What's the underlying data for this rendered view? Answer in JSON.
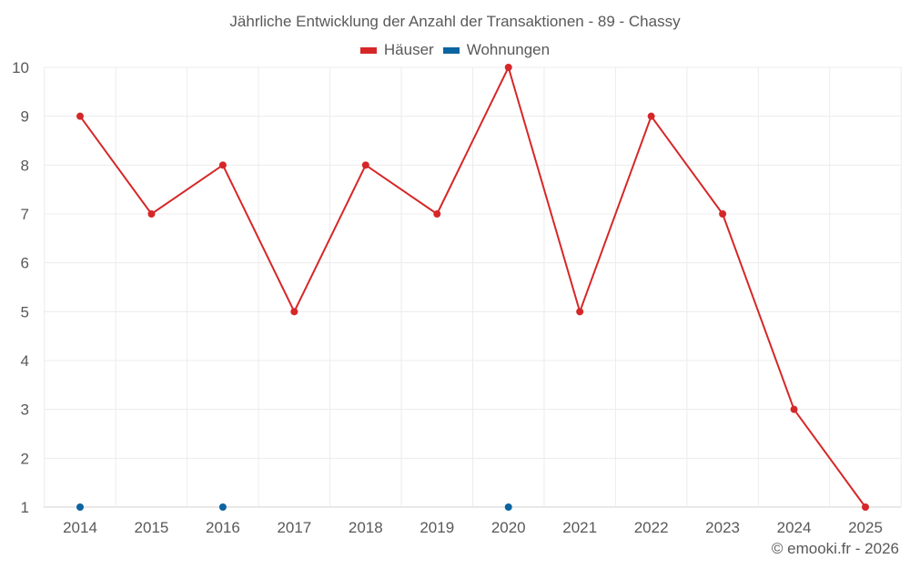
{
  "chart_data": {
    "type": "line",
    "title": "Jährliche Entwicklung der Anzahl der Transaktionen - 89 - Chassy",
    "xlabel": "",
    "ylabel": "",
    "categories": [
      "2014",
      "2015",
      "2016",
      "2017",
      "2018",
      "2019",
      "2020",
      "2021",
      "2022",
      "2023",
      "2024",
      "2025"
    ],
    "series": [
      {
        "name": "Häuser",
        "color": "#d62728",
        "values": [
          9,
          7,
          8,
          5,
          8,
          7,
          10,
          5,
          9,
          7,
          3,
          1
        ]
      },
      {
        "name": "Wohnungen",
        "color": "#0b64a0",
        "values": [
          1,
          null,
          1,
          null,
          null,
          null,
          1,
          null,
          null,
          null,
          null,
          null
        ]
      }
    ],
    "ylim": [
      1,
      10
    ],
    "yticks": [
      1,
      2,
      3,
      4,
      5,
      6,
      7,
      8,
      9,
      10
    ],
    "grid": true,
    "legend_position": "top"
  },
  "legend": {
    "items": [
      {
        "label": "Häuser",
        "color": "#d62728"
      },
      {
        "label": "Wohnungen",
        "color": "#0b64a0"
      }
    ]
  },
  "credit": "© emooki.fr - 2026"
}
